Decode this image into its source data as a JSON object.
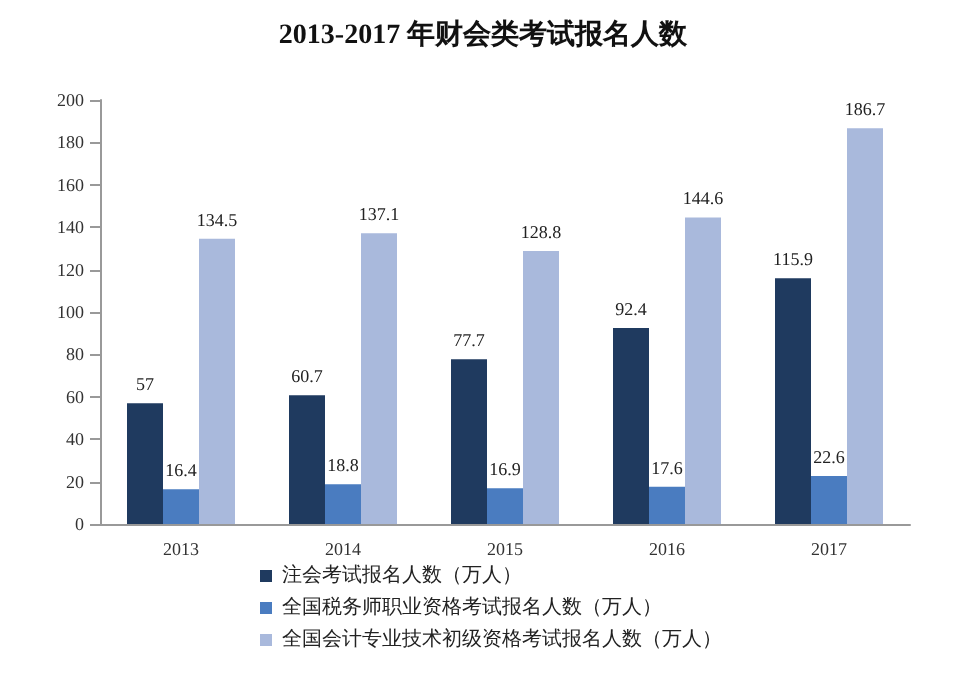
{
  "chart_data": {
    "type": "bar",
    "title": "2013-2017 年财会类考试报名人数",
    "categories": [
      "2013",
      "2014",
      "2015",
      "2016",
      "2017"
    ],
    "series": [
      {
        "name": "注会考试报名人数（万人）",
        "color": "#1f3a5f",
        "values": [
          57,
          60.7,
          77.7,
          92.4,
          115.9
        ]
      },
      {
        "name": "全国税务师职业资格考试报名人数（万人）",
        "color": "#4a7cc0",
        "values": [
          16.4,
          18.8,
          16.9,
          17.6,
          22.6
        ]
      },
      {
        "name": "全国会计专业技术初级资格考试报名人数（万人）",
        "color": "#a9b9dc",
        "values": [
          134.5,
          137.1,
          128.8,
          144.6,
          186.7
        ]
      }
    ],
    "ylim": [
      0,
      200
    ],
    "yticks": [
      0,
      20,
      40,
      60,
      80,
      100,
      120,
      140,
      160,
      180,
      200
    ],
    "grid": false,
    "legend": "bottom",
    "data_labels": true
  }
}
